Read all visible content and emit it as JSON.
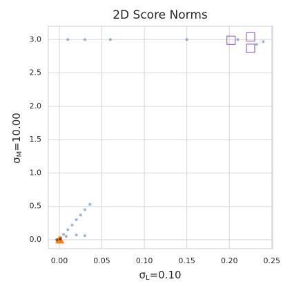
{
  "chart_data": {
    "type": "scatter",
    "title": "2D Score Norms",
    "xlabel": {
      "symbol": "σ",
      "sub": "L",
      "rest": "=0.10"
    },
    "ylabel": {
      "symbol": "σ",
      "sub": "M",
      "rest": "=10.00"
    },
    "xlim": [
      -0.013,
      0.251
    ],
    "ylim": [
      -0.135,
      3.2
    ],
    "xticks": [
      {
        "value": 0,
        "label": "0.00"
      },
      {
        "value": 0.05,
        "label": "0.05"
      },
      {
        "value": 0.1,
        "label": "0.10"
      },
      {
        "value": 0.15,
        "label": "0.15"
      },
      {
        "value": 0.2,
        "label": "0.20"
      },
      {
        "value": 0.25,
        "label": "0.25"
      }
    ],
    "yticks": [
      {
        "value": 0,
        "label": "0.0"
      },
      {
        "value": 0.5,
        "label": "0.5"
      },
      {
        "value": 1,
        "label": "1.0"
      },
      {
        "value": 1.5,
        "label": "1.5"
      },
      {
        "value": 2,
        "label": "2.0"
      },
      {
        "value": 2.5,
        "label": "2.5"
      },
      {
        "value": 3,
        "label": "3.0"
      }
    ],
    "grid": true,
    "series": [
      {
        "marker": "dot",
        "color": "#4c72b0",
        "x": [
          0.002,
          0.005,
          0.01,
          0.015,
          0.02,
          0.025,
          0.03,
          0.036,
          0.02,
          0.008,
          0.03,
          0.01,
          0.03,
          0.06,
          0.15,
          0.24,
          0.232,
          0.21
        ],
        "y": [
          0.03,
          0.08,
          0.15,
          0.22,
          0.3,
          0.37,
          0.45,
          0.53,
          0.07,
          0.05,
          0.06,
          3.0,
          3.0,
          3.0,
          3.0,
          2.97,
          2.93,
          3.0
        ]
      },
      {
        "marker": "square",
        "color": "#9467bd",
        "x": [
          0.202,
          0.225,
          0.225
        ],
        "y": [
          2.99,
          3.04,
          2.87
        ]
      },
      {
        "marker": "triangle",
        "color": "#ff7f0e",
        "x": [
          0.0,
          0.001
        ],
        "y": [
          0.0,
          -0.005
        ]
      },
      {
        "marker": "dot",
        "color": "#000000",
        "x": [
          -0.003,
          0.001
        ],
        "y": [
          0.0,
          0.01
        ]
      }
    ]
  }
}
